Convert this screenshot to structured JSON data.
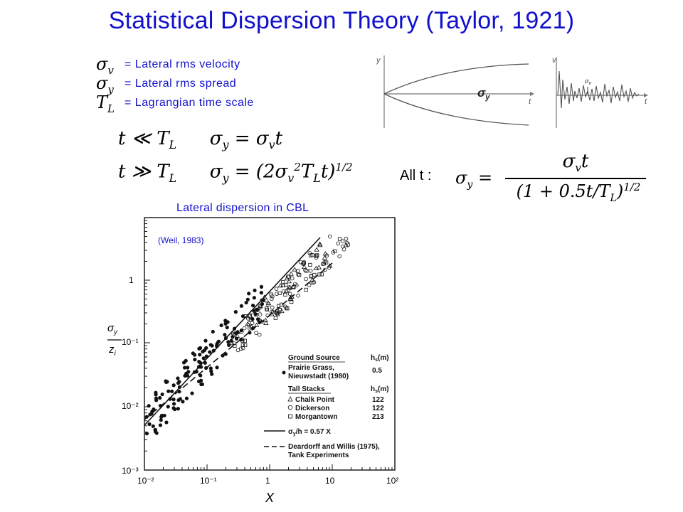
{
  "title": "Statistical Dispersion Theory (Taylor, 1921)",
  "definitions": [
    {
      "symbol": "σ",
      "sub": "v",
      "text": "= Lateral rms velocity"
    },
    {
      "symbol": "σ",
      "sub": "y",
      "text": "= Lateral rms spread"
    },
    {
      "symbol": "T",
      "sub": "L",
      "text": "= Lagrangian time scale"
    }
  ],
  "regimes": {
    "short": {
      "condition": "t ≪ T",
      "condition_sub": "L",
      "law": "σ",
      "law_sub": "y",
      "law_rest": " = σ",
      "law_rest_sub": "v",
      "law_tail": "t"
    },
    "long": {
      "condition": "t ≫ T",
      "condition_sub": "L",
      "law": "σ",
      "law_sub": "y",
      "law_rest": " = (2σ",
      "law_rest_sub": "v",
      "law_mid_sup": "2",
      "law_mid": "T",
      "law_mid_sub": "L",
      "law_tail": "t)",
      "law_tail_sup": "1/2"
    }
  },
  "all_t": {
    "label": "All t :",
    "lhs": "σ",
    "lhs_sub": "y",
    "eq": "=",
    "numerator": "σ",
    "numerator_sub": "v",
    "numerator_tail": "t",
    "denominator": "(1 + 0.5t/T",
    "denominator_sub": "L",
    "denominator_tail": ")",
    "denominator_sup": "1/2"
  },
  "sketch_spread": {
    "y_axis": "y",
    "x_axis": "t",
    "curve_label": "σ",
    "curve_label_sub": "y"
  },
  "sketch_velocity": {
    "y_axis": "v",
    "x_axis": "t",
    "band_label": "σ",
    "band_label_sub": "v"
  },
  "plot": {
    "caption": "Lateral dispersion in CBL",
    "source": "(Weil, 1983)",
    "y_label_num": "σ",
    "y_label_num_sub": "y",
    "y_label_den": "z",
    "y_label_den_sub": "i",
    "x_label": "X",
    "y_ticks": [
      "1",
      "10⁻¹",
      "10⁻²",
      "10⁻³"
    ],
    "x_ticks": [
      "10⁻²",
      "10⁻¹",
      "1",
      "10",
      "10²"
    ],
    "legend": {
      "ground_header": "Ground Source",
      "ground_hs_header": "h",
      "ground_hs_sub": "s",
      "ground_hs_unit": "(m)",
      "prairie_1": "Prairie Grass,",
      "prairie_2": "Nieuwstadt (1980)",
      "prairie_hs": "0.5",
      "tall_header": "Tall Stacks",
      "tall_hs_header": "h",
      "tall_hs_sub": "s",
      "tall_hs_unit": "(m)",
      "chalk": "Chalk Point",
      "chalk_hs": "122",
      "dickerson": "Dickerson",
      "dickerson_hs": "122",
      "morgantown": "Morgantown",
      "morgantown_hs": "213",
      "line_label": "σ",
      "line_label_sub": "y",
      "line_label_tail": "/h = 0.57 X",
      "dashed_1": "Deardorff and Willis (1975),",
      "dashed_2": "Tank Experiments"
    }
  },
  "colors": {
    "accent": "#1111cc",
    "text": "#000000"
  }
}
